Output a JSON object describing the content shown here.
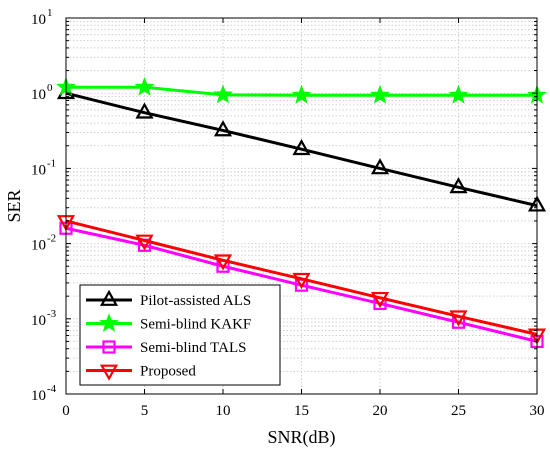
{
  "chart_data": {
    "type": "line",
    "xlabel": "SNR(dB)",
    "ylabel": "SER",
    "x": [
      0,
      5,
      10,
      15,
      20,
      25,
      30
    ],
    "xlim": [
      0,
      30
    ],
    "ylim": [
      0.0001,
      10
    ],
    "yscale": "log",
    "xticks": [
      "0",
      "5",
      "10",
      "15",
      "20",
      "25",
      "30"
    ],
    "yticks": [
      {
        "base": "10",
        "exp": "-4"
      },
      {
        "base": "10",
        "exp": "-3"
      },
      {
        "base": "10",
        "exp": "-2"
      },
      {
        "base": "10",
        "exp": "-1"
      },
      {
        "base": "10",
        "exp": "0"
      },
      {
        "base": "10",
        "exp": "1"
      }
    ],
    "grid": true,
    "legend_position": "bottom-left",
    "series": [
      {
        "name": "Pilot-assisted ALS",
        "color": "#000000",
        "marker": "triangle-up",
        "values": [
          1.0,
          0.55,
          0.32,
          0.18,
          0.1,
          0.056,
          0.032
        ]
      },
      {
        "name": "Semi-blind KAKF",
        "color": "#00ff00",
        "marker": "star",
        "values": [
          1.2,
          1.2,
          0.95,
          0.94,
          0.94,
          0.94,
          0.94
        ]
      },
      {
        "name": "Semi-blind TALS",
        "color": "#ff00ff",
        "marker": "square",
        "values": [
          0.016,
          0.0095,
          0.005,
          0.0028,
          0.0016,
          0.0009,
          0.0005
        ]
      },
      {
        "name": "Proposed",
        "color": "#ff0000",
        "marker": "triangle-down",
        "values": [
          0.02,
          0.011,
          0.006,
          0.0034,
          0.0019,
          0.00108,
          0.00062
        ]
      }
    ]
  }
}
